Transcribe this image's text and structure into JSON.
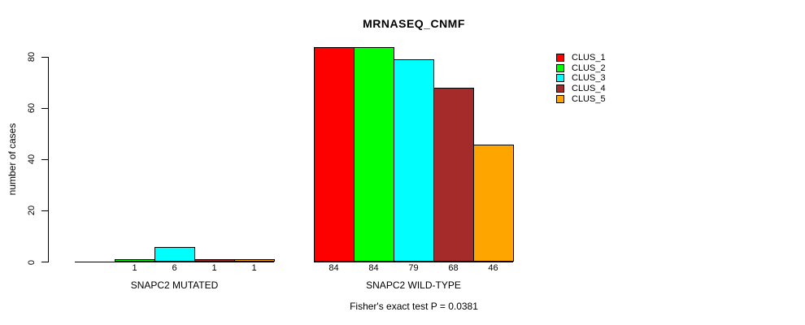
{
  "chart_data": {
    "type": "bar",
    "title": "MRNASEQ_CNMF",
    "ylabel": "number of cases",
    "yticks": [
      0,
      20,
      40,
      60,
      80
    ],
    "ylim": [
      0,
      88
    ],
    "grid": false,
    "legend_position": "topright",
    "series_colors": [
      "#FF0000",
      "#00FF00",
      "#00FFFF",
      "#A52A2A",
      "#FFA500"
    ],
    "legend": [
      "CLUS_1",
      "CLUS_2",
      "CLUS_3",
      "CLUS_4",
      "CLUS_5"
    ],
    "groups": [
      {
        "label": "SNAPC2 MUTATED",
        "values": [
          0,
          1,
          6,
          1,
          1
        ],
        "bar_labels": [
          "",
          "1",
          "6",
          "1",
          "1"
        ]
      },
      {
        "label": "SNAPC2 WILD-TYPE",
        "values": [
          84,
          84,
          79,
          68,
          46
        ],
        "bar_labels": [
          "84",
          "84",
          "79",
          "68",
          "46"
        ]
      }
    ],
    "annotation": "Fisher's exact test P = 0.0381"
  }
}
